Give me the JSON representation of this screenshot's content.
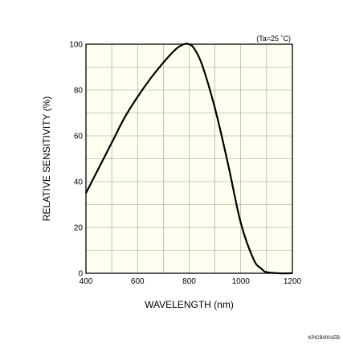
{
  "chart_data": {
    "type": "line",
    "xlabel": "WAVELENGTH (nm)",
    "ylabel": "RELATIVE SENSITIVITY (%)",
    "xlim": [
      400,
      1200
    ],
    "ylim": [
      0,
      100
    ],
    "xticks": [
      400,
      600,
      800,
      1000,
      1200
    ],
    "yticks": [
      0,
      20,
      40,
      60,
      80,
      100
    ],
    "grid": true,
    "background_color": "#fffff0",
    "line_color": "#000000",
    "annotation": "(Ta=25 ˚C)",
    "figure_code": "KPICB0001EB",
    "series": [
      {
        "x": [
          400,
          450,
          500,
          550,
          600,
          650,
          700,
          750,
          780,
          800,
          820,
          850,
          900,
          950,
          1000,
          1050,
          1080,
          1100,
          1150,
          1200
        ],
        "y": [
          35,
          46,
          57,
          68,
          77,
          85,
          92,
          98,
          100,
          100,
          98,
          91,
          72,
          48,
          22,
          6,
          2,
          0.5,
          0,
          0
        ]
      }
    ]
  }
}
